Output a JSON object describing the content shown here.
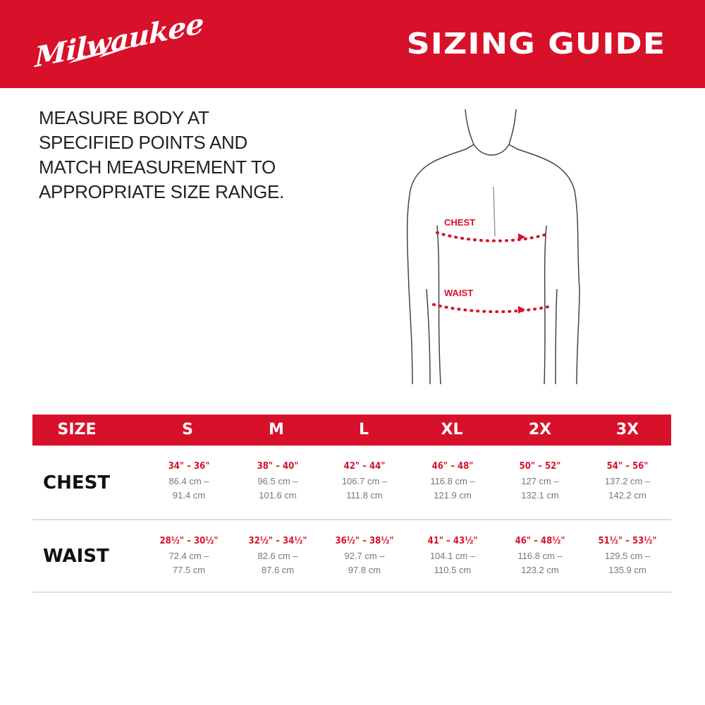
{
  "brand": {
    "logo_text": "Milwaukee",
    "color": "#d7112a"
  },
  "header": {
    "title": "SIZING GUIDE"
  },
  "instructions": "MEASURE BODY AT SPECIFIED POINTS AND MATCH MEASUREMENT TO APPROPRIATE SIZE RANGE.",
  "figure": {
    "chest_label": "CHEST",
    "waist_label": "WAIST"
  },
  "table": {
    "header": [
      "SIZE",
      "S",
      "M",
      "L",
      "XL",
      "2X",
      "3X"
    ],
    "rows": [
      {
        "label": "CHEST",
        "cells": [
          {
            "in": "34\" – 36\"",
            "cm": "86.4 cm – 91.4 cm"
          },
          {
            "in": "38\" – 40\"",
            "cm": "96.5 cm – 101.6 cm"
          },
          {
            "in": "42\" – 44\"",
            "cm": "106.7 cm – 111.8 cm"
          },
          {
            "in": "46\" – 48\"",
            "cm": "116.8 cm – 121.9 cm"
          },
          {
            "in": "50\" – 52\"",
            "cm": "127 cm – 132.1 cm"
          },
          {
            "in": "54\" – 56\"",
            "cm": "137.2 cm – 142.2 cm"
          }
        ]
      },
      {
        "label": "WAIST",
        "cells": [
          {
            "in": "28½\" – 30½\"",
            "cm": "72.4 cm – 77.5 cm"
          },
          {
            "in": "32½\" – 34½\"",
            "cm": "82.6 cm – 87.6 cm"
          },
          {
            "in": "36½\" – 38½\"",
            "cm": "92.7 cm – 97.8 cm"
          },
          {
            "in": "41\" – 43½\"",
            "cm": "104.1 cm – 110.5 cm"
          },
          {
            "in": "46\" – 48½\"",
            "cm": "116.8 cm – 123.2 cm"
          },
          {
            "in": "51½\" – 53½\"",
            "cm": "129.5 cm – 135.9 cm"
          }
        ]
      }
    ]
  }
}
